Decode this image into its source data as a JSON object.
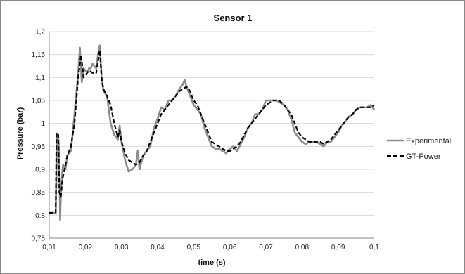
{
  "chart_data": {
    "type": "line",
    "title": "Sensor 1",
    "xlabel": "time (s)",
    "ylabel": "Pressure (bar)",
    "xlim": [
      0.01,
      0.1
    ],
    "ylim": [
      0.75,
      1.2
    ],
    "x_ticks": [
      "0,01",
      "0,02",
      "0,03",
      "0,04",
      "0,05",
      "0,06",
      "0,07",
      "0,08",
      "0,09",
      "0,1"
    ],
    "y_ticks": [
      "0,75",
      "0,8",
      "0,85",
      "0,9",
      "0,95",
      "1",
      "1,05",
      "1,1",
      "1,15",
      "1,2"
    ],
    "grid": true,
    "legend_position": "right",
    "series": [
      {
        "name": "Experimental",
        "color": "#8c8c8c",
        "style": "solid",
        "points": [
          [
            0.01,
            0.805
          ],
          [
            0.0118,
            0.805
          ],
          [
            0.0122,
            0.975
          ],
          [
            0.0125,
            0.97
          ],
          [
            0.0128,
            0.93
          ],
          [
            0.013,
            0.79
          ],
          [
            0.0133,
            0.86
          ],
          [
            0.0138,
            0.91
          ],
          [
            0.0145,
            0.9
          ],
          [
            0.015,
            0.93
          ],
          [
            0.016,
            0.94
          ],
          [
            0.017,
            1.02
          ],
          [
            0.018,
            1.11
          ],
          [
            0.0185,
            1.165
          ],
          [
            0.019,
            1.09
          ],
          [
            0.0195,
            1.12
          ],
          [
            0.0205,
            1.11
          ],
          [
            0.021,
            1.12
          ],
          [
            0.0215,
            1.12
          ],
          [
            0.022,
            1.13
          ],
          [
            0.023,
            1.12
          ],
          [
            0.0235,
            1.15
          ],
          [
            0.024,
            1.17
          ],
          [
            0.0245,
            1.1
          ],
          [
            0.025,
            1.07
          ],
          [
            0.026,
            1.06
          ],
          [
            0.027,
            1.0
          ],
          [
            0.028,
            0.975
          ],
          [
            0.029,
            0.965
          ],
          [
            0.0295,
            0.995
          ],
          [
            0.03,
            0.96
          ],
          [
            0.031,
            0.92
          ],
          [
            0.032,
            0.895
          ],
          [
            0.033,
            0.9
          ],
          [
            0.034,
            0.91
          ],
          [
            0.0345,
            0.94
          ],
          [
            0.035,
            0.9
          ],
          [
            0.036,
            0.93
          ],
          [
            0.038,
            0.95
          ],
          [
            0.039,
            0.99
          ],
          [
            0.04,
            1.01
          ],
          [
            0.041,
            1.035
          ],
          [
            0.042,
            1.03
          ],
          [
            0.043,
            1.05
          ],
          [
            0.044,
            1.05
          ],
          [
            0.045,
            1.06
          ],
          [
            0.046,
            1.075
          ],
          [
            0.047,
            1.085
          ],
          [
            0.0475,
            1.095
          ],
          [
            0.048,
            1.08
          ],
          [
            0.049,
            1.06
          ],
          [
            0.05,
            1.04
          ],
          [
            0.051,
            1.03
          ],
          [
            0.052,
            1.02
          ],
          [
            0.053,
            0.99
          ],
          [
            0.054,
            0.97
          ],
          [
            0.055,
            0.95
          ],
          [
            0.056,
            0.945
          ],
          [
            0.057,
            0.945
          ],
          [
            0.058,
            0.94
          ],
          [
            0.059,
            0.935
          ],
          [
            0.06,
            0.945
          ],
          [
            0.061,
            0.95
          ],
          [
            0.062,
            0.94
          ],
          [
            0.063,
            0.955
          ],
          [
            0.064,
            0.97
          ],
          [
            0.065,
            0.99
          ],
          [
            0.066,
            1.0
          ],
          [
            0.067,
            1.02
          ],
          [
            0.068,
            1.02
          ],
          [
            0.069,
            1.03
          ],
          [
            0.07,
            1.05
          ],
          [
            0.071,
            1.05
          ],
          [
            0.072,
            1.05
          ],
          [
            0.073,
            1.05
          ],
          [
            0.074,
            1.045
          ],
          [
            0.075,
            1.04
          ],
          [
            0.076,
            1.03
          ],
          [
            0.077,
            1.01
          ],
          [
            0.078,
            0.98
          ],
          [
            0.079,
            0.97
          ],
          [
            0.08,
            0.96
          ],
          [
            0.081,
            0.955
          ],
          [
            0.082,
            0.96
          ],
          [
            0.083,
            0.96
          ],
          [
            0.084,
            0.96
          ],
          [
            0.085,
            0.955
          ],
          [
            0.086,
            0.95
          ],
          [
            0.087,
            0.96
          ],
          [
            0.088,
            0.96
          ],
          [
            0.089,
            0.97
          ],
          [
            0.09,
            0.98
          ],
          [
            0.091,
            0.995
          ],
          [
            0.092,
            1.005
          ],
          [
            0.093,
            1.015
          ],
          [
            0.094,
            1.02
          ],
          [
            0.095,
            1.03
          ],
          [
            0.096,
            1.035
          ],
          [
            0.097,
            1.035
          ],
          [
            0.098,
            1.035
          ],
          [
            0.099,
            1.04
          ],
          [
            0.1,
            1.03
          ]
        ]
      },
      {
        "name": "GT-Power",
        "color": "#000000",
        "style": "dashed",
        "points": [
          [
            0.01,
            0.805
          ],
          [
            0.0118,
            0.805
          ],
          [
            0.012,
            0.98
          ],
          [
            0.0125,
            0.975
          ],
          [
            0.0128,
            0.85
          ],
          [
            0.0132,
            0.84
          ],
          [
            0.0137,
            0.88
          ],
          [
            0.0145,
            0.91
          ],
          [
            0.015,
            0.93
          ],
          [
            0.016,
            0.95
          ],
          [
            0.017,
            1.0
          ],
          [
            0.018,
            1.1
          ],
          [
            0.0188,
            1.15
          ],
          [
            0.0195,
            1.1
          ],
          [
            0.02,
            1.105
          ],
          [
            0.021,
            1.115
          ],
          [
            0.022,
            1.11
          ],
          [
            0.023,
            1.11
          ],
          [
            0.024,
            1.16
          ],
          [
            0.0245,
            1.1
          ],
          [
            0.025,
            1.075
          ],
          [
            0.026,
            1.06
          ],
          [
            0.027,
            1.04
          ],
          [
            0.028,
            1.0
          ],
          [
            0.029,
            0.97
          ],
          [
            0.0295,
            0.985
          ],
          [
            0.03,
            0.96
          ],
          [
            0.031,
            0.935
          ],
          [
            0.032,
            0.92
          ],
          [
            0.033,
            0.915
          ],
          [
            0.034,
            0.91
          ],
          [
            0.035,
            0.915
          ],
          [
            0.036,
            0.93
          ],
          [
            0.037,
            0.94
          ],
          [
            0.038,
            0.96
          ],
          [
            0.039,
            0.98
          ],
          [
            0.04,
            1.0
          ],
          [
            0.041,
            1.02
          ],
          [
            0.042,
            1.03
          ],
          [
            0.043,
            1.04
          ],
          [
            0.044,
            1.05
          ],
          [
            0.045,
            1.06
          ],
          [
            0.046,
            1.07
          ],
          [
            0.047,
            1.075
          ],
          [
            0.048,
            1.08
          ],
          [
            0.049,
            1.07
          ],
          [
            0.05,
            1.05
          ],
          [
            0.051,
            1.04
          ],
          [
            0.052,
            1.02
          ],
          [
            0.053,
            1.0
          ],
          [
            0.054,
            0.98
          ],
          [
            0.055,
            0.96
          ],
          [
            0.056,
            0.955
          ],
          [
            0.057,
            0.95
          ],
          [
            0.058,
            0.945
          ],
          [
            0.059,
            0.94
          ],
          [
            0.06,
            0.94
          ],
          [
            0.061,
            0.945
          ],
          [
            0.062,
            0.95
          ],
          [
            0.063,
            0.96
          ],
          [
            0.064,
            0.975
          ],
          [
            0.065,
            0.99
          ],
          [
            0.066,
            1.0
          ],
          [
            0.067,
            1.01
          ],
          [
            0.068,
            1.02
          ],
          [
            0.069,
            1.03
          ],
          [
            0.07,
            1.04
          ],
          [
            0.071,
            1.045
          ],
          [
            0.072,
            1.05
          ],
          [
            0.073,
            1.05
          ],
          [
            0.074,
            1.048
          ],
          [
            0.075,
            1.04
          ],
          [
            0.076,
            1.03
          ],
          [
            0.077,
            1.02
          ],
          [
            0.078,
            1.0
          ],
          [
            0.079,
            0.98
          ],
          [
            0.08,
            0.97
          ],
          [
            0.081,
            0.965
          ],
          [
            0.082,
            0.96
          ],
          [
            0.083,
            0.96
          ],
          [
            0.084,
            0.96
          ],
          [
            0.085,
            0.96
          ],
          [
            0.086,
            0.955
          ],
          [
            0.087,
            0.96
          ],
          [
            0.088,
            0.965
          ],
          [
            0.089,
            0.975
          ],
          [
            0.09,
            0.985
          ],
          [
            0.091,
            0.995
          ],
          [
            0.092,
            1.005
          ],
          [
            0.093,
            1.015
          ],
          [
            0.094,
            1.02
          ],
          [
            0.095,
            1.03
          ],
          [
            0.096,
            1.035
          ],
          [
            0.097,
            1.035
          ],
          [
            0.098,
            1.035
          ],
          [
            0.099,
            1.035
          ],
          [
            0.1,
            1.04
          ]
        ]
      }
    ]
  }
}
